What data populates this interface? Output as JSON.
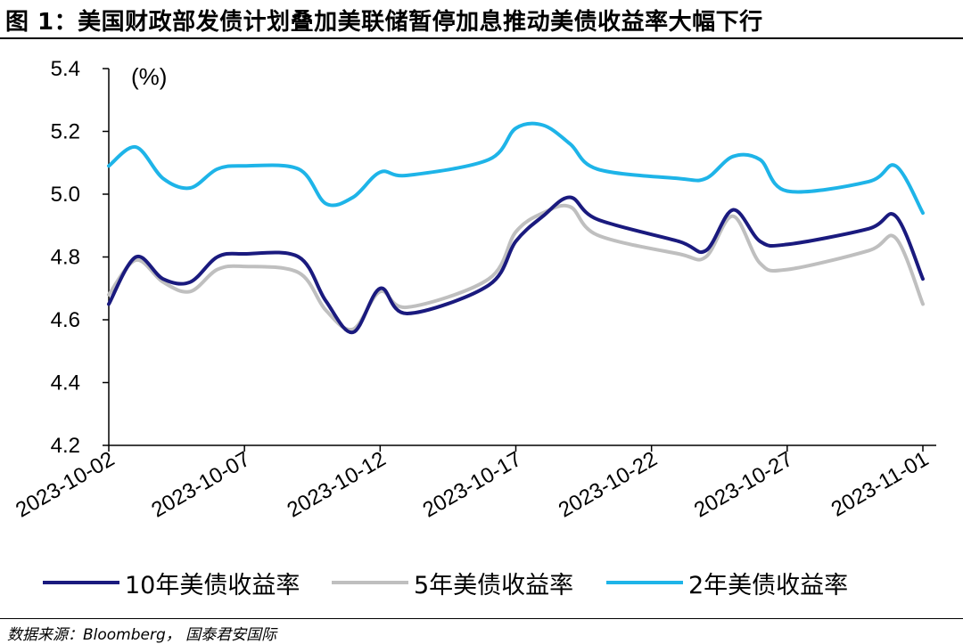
{
  "title": "图 1：美国财政部发债计划叠加美联储暂停加息推动美债收益率大幅下行",
  "source": "数据来源：Bloomberg， 国泰君安国际",
  "colors": {
    "s10": "#1a1a7e",
    "s5": "#bfbfbf",
    "s2": "#1eb4e8",
    "axis": "#000000"
  },
  "chart_data": {
    "type": "line",
    "ylabel": "(%)",
    "ylim": [
      4.2,
      5.4
    ],
    "yticks": [
      "5.4",
      "5.2",
      "5.0",
      "4.8",
      "4.6",
      "4.4",
      "4.2"
    ],
    "xticks": [
      "2023-10-02",
      "2023-10-07",
      "2023-10-12",
      "2023-10-17",
      "2023-10-22",
      "2023-10-27",
      "2023-11-01"
    ],
    "x": [
      "2023-10-02",
      "2023-10-03",
      "2023-10-04",
      "2023-10-05",
      "2023-10-06",
      "2023-10-07",
      "2023-10-09",
      "2023-10-10",
      "2023-10-11",
      "2023-10-12",
      "2023-10-13",
      "2023-10-16",
      "2023-10-17",
      "2023-10-18",
      "2023-10-19",
      "2023-10-20",
      "2023-10-23",
      "2023-10-24",
      "2023-10-25",
      "2023-10-26",
      "2023-10-27",
      "2023-10-30",
      "2023-10-31",
      "2023-11-01"
    ],
    "legend_position": "bottom",
    "grid": false,
    "series": [
      {
        "name": "10年美债收益率",
        "color": "#1a1a7e",
        "values": [
          4.65,
          4.8,
          4.73,
          4.72,
          4.8,
          4.81,
          4.8,
          4.66,
          4.56,
          4.7,
          4.62,
          4.71,
          4.85,
          4.93,
          4.99,
          4.92,
          4.85,
          4.82,
          4.95,
          4.85,
          4.84,
          4.89,
          4.93,
          4.73
        ]
      },
      {
        "name": "5年美债收益率",
        "color": "#bfbfbf",
        "values": [
          4.68,
          4.79,
          4.72,
          4.69,
          4.76,
          4.77,
          4.75,
          4.63,
          4.57,
          4.69,
          4.64,
          4.73,
          4.88,
          4.94,
          4.96,
          4.87,
          4.81,
          4.8,
          4.93,
          4.78,
          4.76,
          4.82,
          4.86,
          4.65
        ]
      },
      {
        "name": "2年美债收益率",
        "color": "#1eb4e8",
        "values": [
          5.09,
          5.15,
          5.05,
          5.02,
          5.08,
          5.09,
          5.08,
          4.97,
          4.99,
          5.07,
          5.06,
          5.11,
          5.21,
          5.22,
          5.16,
          5.08,
          5.05,
          5.05,
          5.12,
          5.11,
          5.01,
          5.04,
          5.09,
          4.94
        ]
      }
    ]
  }
}
